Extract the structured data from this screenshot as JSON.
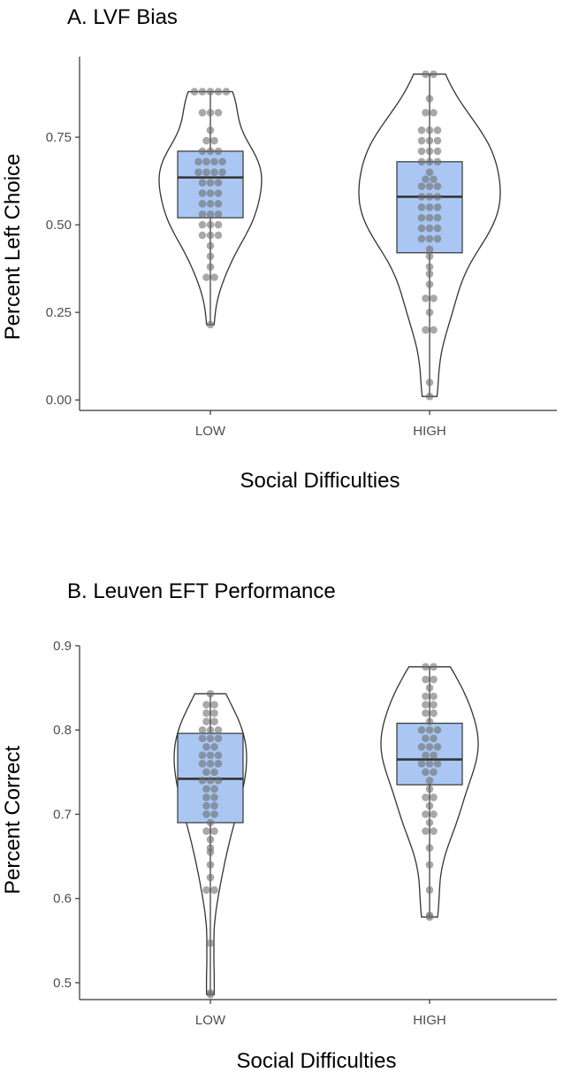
{
  "colors": {
    "box_fill": "#a9c7f2",
    "violin_fill": "#ffffff",
    "outline": "#333333",
    "dot": "#6e6e6e"
  },
  "chart_data": [
    {
      "type": "violin",
      "title": "A. LVF Bias",
      "xlabel": "Social Difficulties",
      "ylabel": "Percent Left Choice",
      "categories": [
        "LOW",
        "HIGH"
      ],
      "ylim": [
        -0.03,
        0.98
      ],
      "yticks": [
        0.0,
        0.25,
        0.5,
        0.75
      ],
      "ytick_labels": [
        "0.00",
        "0.25",
        "0.50",
        "0.75"
      ],
      "grid": false,
      "groups": [
        {
          "category": "LOW",
          "violin_range": [
            0.215,
            0.88
          ],
          "box": {
            "min": 0.215,
            "q1": 0.52,
            "median": 0.635,
            "q3": 0.71,
            "max": 0.88
          },
          "points": [
            0.88,
            0.88,
            0.88,
            0.88,
            0.88,
            0.82,
            0.82,
            0.82,
            0.77,
            0.74,
            0.74,
            0.71,
            0.71,
            0.71,
            0.68,
            0.68,
            0.68,
            0.68,
            0.65,
            0.65,
            0.65,
            0.65,
            0.62,
            0.62,
            0.62,
            0.59,
            0.59,
            0.59,
            0.56,
            0.56,
            0.56,
            0.53,
            0.53,
            0.53,
            0.5,
            0.5,
            0.5,
            0.47,
            0.47,
            0.47,
            0.44,
            0.41,
            0.38,
            0.35,
            0.35,
            0.215
          ]
        },
        {
          "category": "HIGH",
          "violin_range": [
            0.01,
            0.93
          ],
          "box": {
            "min": 0.01,
            "q1": 0.42,
            "median": 0.58,
            "q3": 0.68,
            "max": 0.93
          },
          "points": [
            0.93,
            0.93,
            0.86,
            0.82,
            0.82,
            0.77,
            0.77,
            0.77,
            0.74,
            0.74,
            0.74,
            0.71,
            0.71,
            0.71,
            0.68,
            0.68,
            0.68,
            0.65,
            0.63,
            0.63,
            0.61,
            0.61,
            0.61,
            0.58,
            0.58,
            0.58,
            0.55,
            0.55,
            0.55,
            0.52,
            0.52,
            0.52,
            0.49,
            0.49,
            0.49,
            0.46,
            0.46,
            0.46,
            0.43,
            0.41,
            0.38,
            0.36,
            0.33,
            0.29,
            0.29,
            0.25,
            0.2,
            0.2,
            0.05,
            0.01
          ]
        }
      ]
    },
    {
      "type": "violin",
      "title": "B. Leuven EFT Performance",
      "xlabel": "Social Difficulties",
      "ylabel": "Percent Correct",
      "categories": [
        "LOW",
        "HIGH"
      ],
      "ylim": [
        0.48,
        0.9
      ],
      "yticks": [
        0.5,
        0.6,
        0.7,
        0.8,
        0.9
      ],
      "ytick_labels": [
        "0.5",
        "0.6",
        "0.7",
        "0.8",
        "0.9"
      ],
      "grid": false,
      "groups": [
        {
          "category": "LOW",
          "violin_range": [
            0.486,
            0.843
          ],
          "box": {
            "min": 0.486,
            "q1": 0.69,
            "median": 0.742,
            "q3": 0.796,
            "max": 0.843
          },
          "points": [
            0.843,
            0.83,
            0.83,
            0.82,
            0.82,
            0.81,
            0.81,
            0.8,
            0.8,
            0.8,
            0.79,
            0.79,
            0.79,
            0.78,
            0.78,
            0.77,
            0.77,
            0.77,
            0.76,
            0.76,
            0.76,
            0.75,
            0.75,
            0.74,
            0.74,
            0.74,
            0.73,
            0.73,
            0.72,
            0.72,
            0.71,
            0.71,
            0.7,
            0.7,
            0.69,
            0.68,
            0.68,
            0.67,
            0.66,
            0.655,
            0.64,
            0.625,
            0.61,
            0.61,
            0.547,
            0.488,
            0.486
          ]
        },
        {
          "category": "HIGH",
          "violin_range": [
            0.578,
            0.875
          ],
          "box": {
            "min": 0.578,
            "q1": 0.735,
            "median": 0.765,
            "q3": 0.808,
            "max": 0.875
          },
          "points": [
            0.875,
            0.875,
            0.86,
            0.86,
            0.85,
            0.84,
            0.84,
            0.83,
            0.83,
            0.82,
            0.82,
            0.81,
            0.8,
            0.8,
            0.8,
            0.79,
            0.79,
            0.78,
            0.78,
            0.78,
            0.77,
            0.77,
            0.76,
            0.76,
            0.76,
            0.75,
            0.75,
            0.74,
            0.73,
            0.72,
            0.72,
            0.71,
            0.7,
            0.7,
            0.69,
            0.68,
            0.68,
            0.66,
            0.64,
            0.61,
            0.58,
            0.578
          ]
        }
      ]
    }
  ]
}
